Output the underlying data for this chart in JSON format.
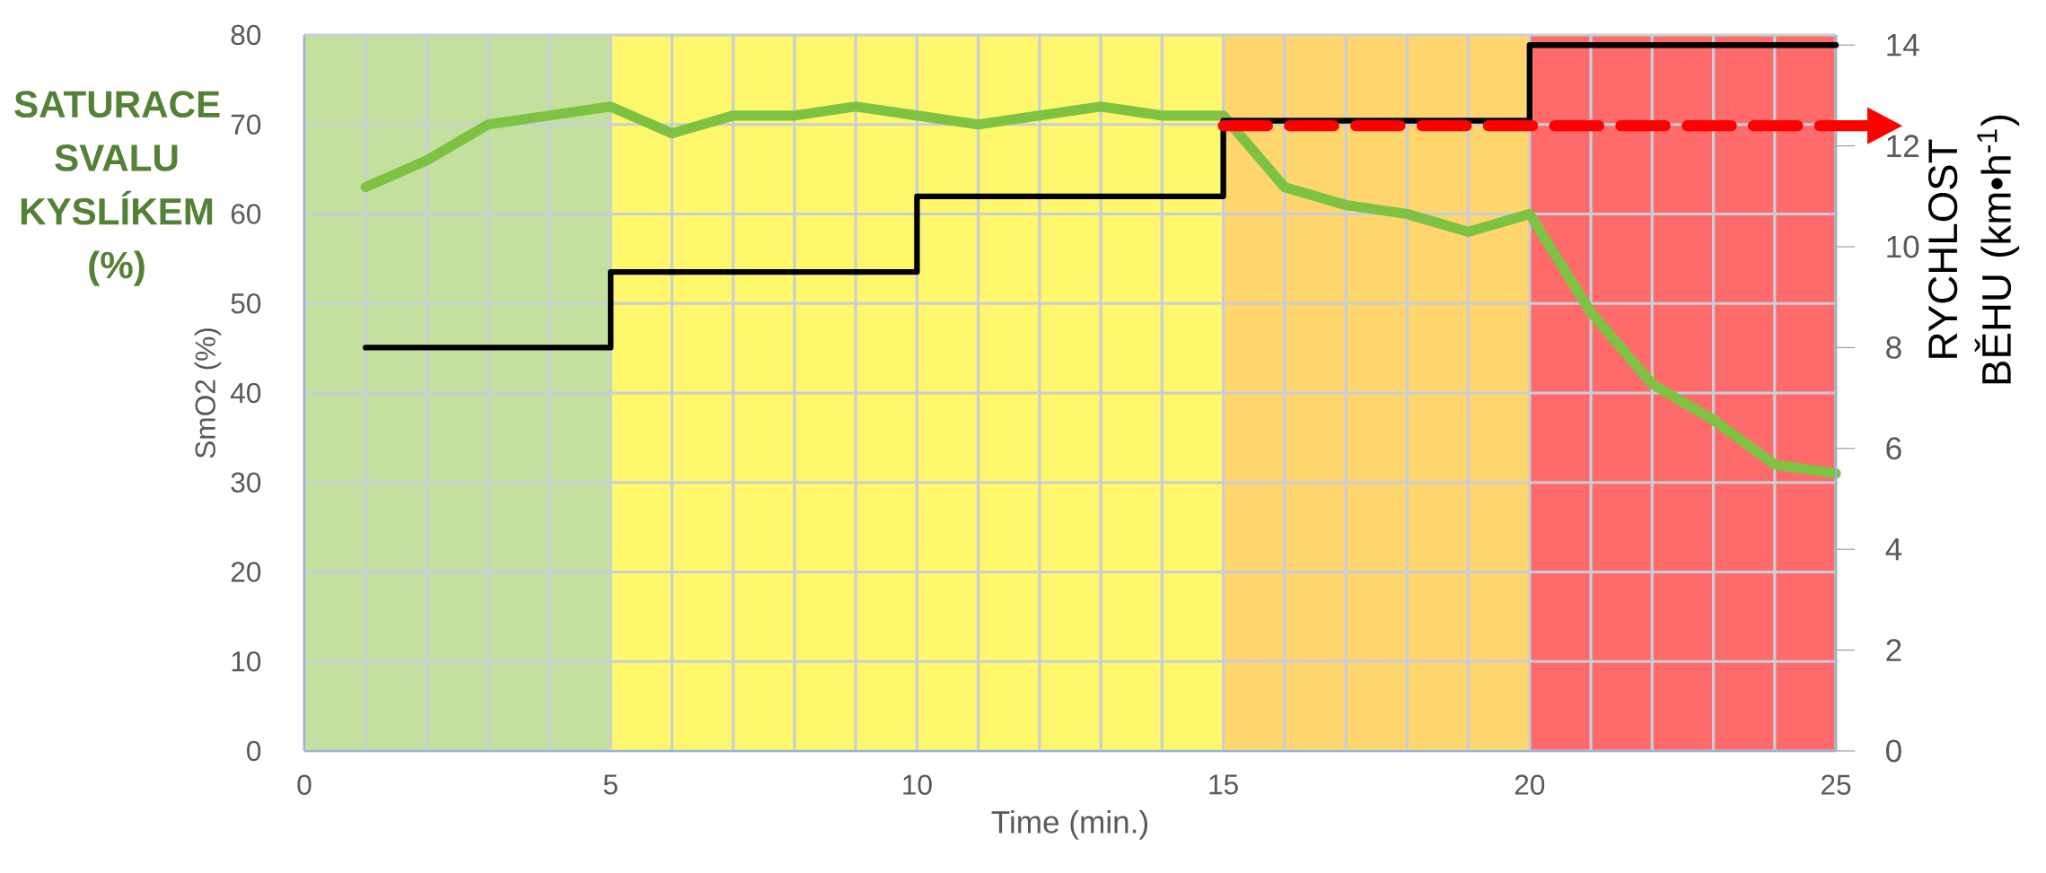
{
  "chart_data": {
    "type": "line",
    "xlabel": "Time (min.)",
    "ylabel": "SmO2 (%)",
    "y2label": "RYCHLOST BĚHU (km•h$^{-1}$)",
    "annotations": [
      "SATURACE SVALU KYSLÍKEM (%)"
    ],
    "series": [
      {
        "type": "line",
        "color": "#7dc242",
        "x": [
          1,
          2,
          3,
          4,
          5,
          6,
          7,
          8,
          9,
          10,
          11,
          12,
          13,
          14,
          15,
          16,
          17,
          18,
          19,
          20,
          21,
          22,
          23,
          24,
          25
        ],
        "values": [
          63,
          66,
          70,
          71,
          72,
          69,
          71,
          71,
          72,
          71,
          70,
          71,
          72,
          71,
          71,
          63,
          61,
          60,
          58,
          60,
          49,
          41,
          37,
          32,
          31
        ]
      },
      {
        "type": "step",
        "axis": "y2",
        "color": "#000000",
        "x": [
          1,
          5,
          10,
          15,
          20,
          25
        ],
        "values": [
          8,
          9.5,
          11,
          12.5,
          14,
          14
        ]
      },
      {
        "type": "line",
        "axis": "y2",
        "color": "#ff0000",
        "line_style": "dashed",
        "x": [
          15,
          25
        ],
        "values": [
          12.4,
          12.4
        ]
      }
    ],
    "xlim": [
      0,
      25
    ],
    "ylim": [
      0,
      80
    ],
    "y2lim": [
      0,
      14.2
    ],
    "xticks": [
      0,
      {
        "value": 1,
        "label": null
      },
      {
        "value": 2,
        "label": null
      },
      {
        "value": 3,
        "label": null
      },
      {
        "value": 4,
        "label": null
      },
      5,
      {
        "value": 6,
        "label": null
      },
      {
        "value": 7,
        "label": null
      },
      {
        "value": 8,
        "label": null
      },
      {
        "value": 9,
        "label": null
      },
      10,
      {
        "value": 11,
        "label": null
      },
      {
        "value": 12,
        "label": null
      },
      {
        "value": 13,
        "label": null
      },
      {
        "value": 14,
        "label": null
      },
      15,
      {
        "value": 16,
        "label": null
      },
      {
        "value": 17,
        "label": null
      },
      {
        "value": 18,
        "label": null
      },
      {
        "value": 19,
        "label": null
      },
      20,
      {
        "value": 21,
        "label": null
      },
      {
        "value": 22,
        "label": null
      },
      {
        "value": 23,
        "label": null
      },
      {
        "value": 24,
        "label": null
      },
      25
    ],
    "yticks": [
      0,
      10,
      20,
      30,
      40,
      50,
      60,
      70,
      80
    ],
    "y2ticks": [
      0,
      2,
      4,
      6,
      8,
      10,
      12,
      14
    ],
    "grid": true,
    "bands": [
      {
        "axis": "x",
        "from": 0,
        "to": 5,
        "color": "#c4e09e"
      },
      {
        "axis": "x",
        "from": 5,
        "to": 15,
        "color": "#fff76b"
      },
      {
        "axis": "x",
        "from": 15,
        "to": 20,
        "color": "#ffd56e"
      },
      {
        "axis": "x",
        "from": 20,
        "to": 25,
        "color": "#ff6b6b"
      }
    ]
  }
}
